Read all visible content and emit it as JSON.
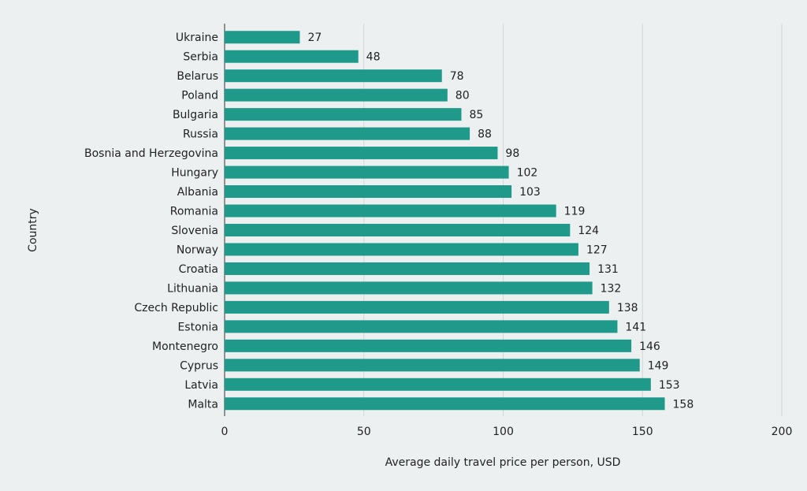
{
  "chart_data": {
    "type": "bar",
    "orientation": "horizontal",
    "xlabel": "Average daily travel price per person, USD",
    "ylabel": "Country",
    "categories": [
      "Ukraine",
      "Serbia",
      "Belarus",
      "Poland",
      "Bulgaria",
      "Russia",
      "Bosnia and Herzegovina",
      "Hungary",
      "Albania",
      "Romania",
      "Slovenia",
      "Norway",
      "Croatia",
      "Lithuania",
      "Czech Republic",
      "Estonia",
      "Montenegro",
      "Cyprus",
      "Latvia",
      "Malta"
    ],
    "values": [
      27,
      48,
      78,
      80,
      85,
      88,
      98,
      102,
      103,
      119,
      124,
      127,
      131,
      132,
      138,
      141,
      146,
      149,
      153,
      158
    ],
    "color": "#1f9a8a",
    "xlim": [
      0,
      200
    ],
    "xticks": [
      0,
      50,
      100,
      150,
      200
    ],
    "grid": true
  }
}
